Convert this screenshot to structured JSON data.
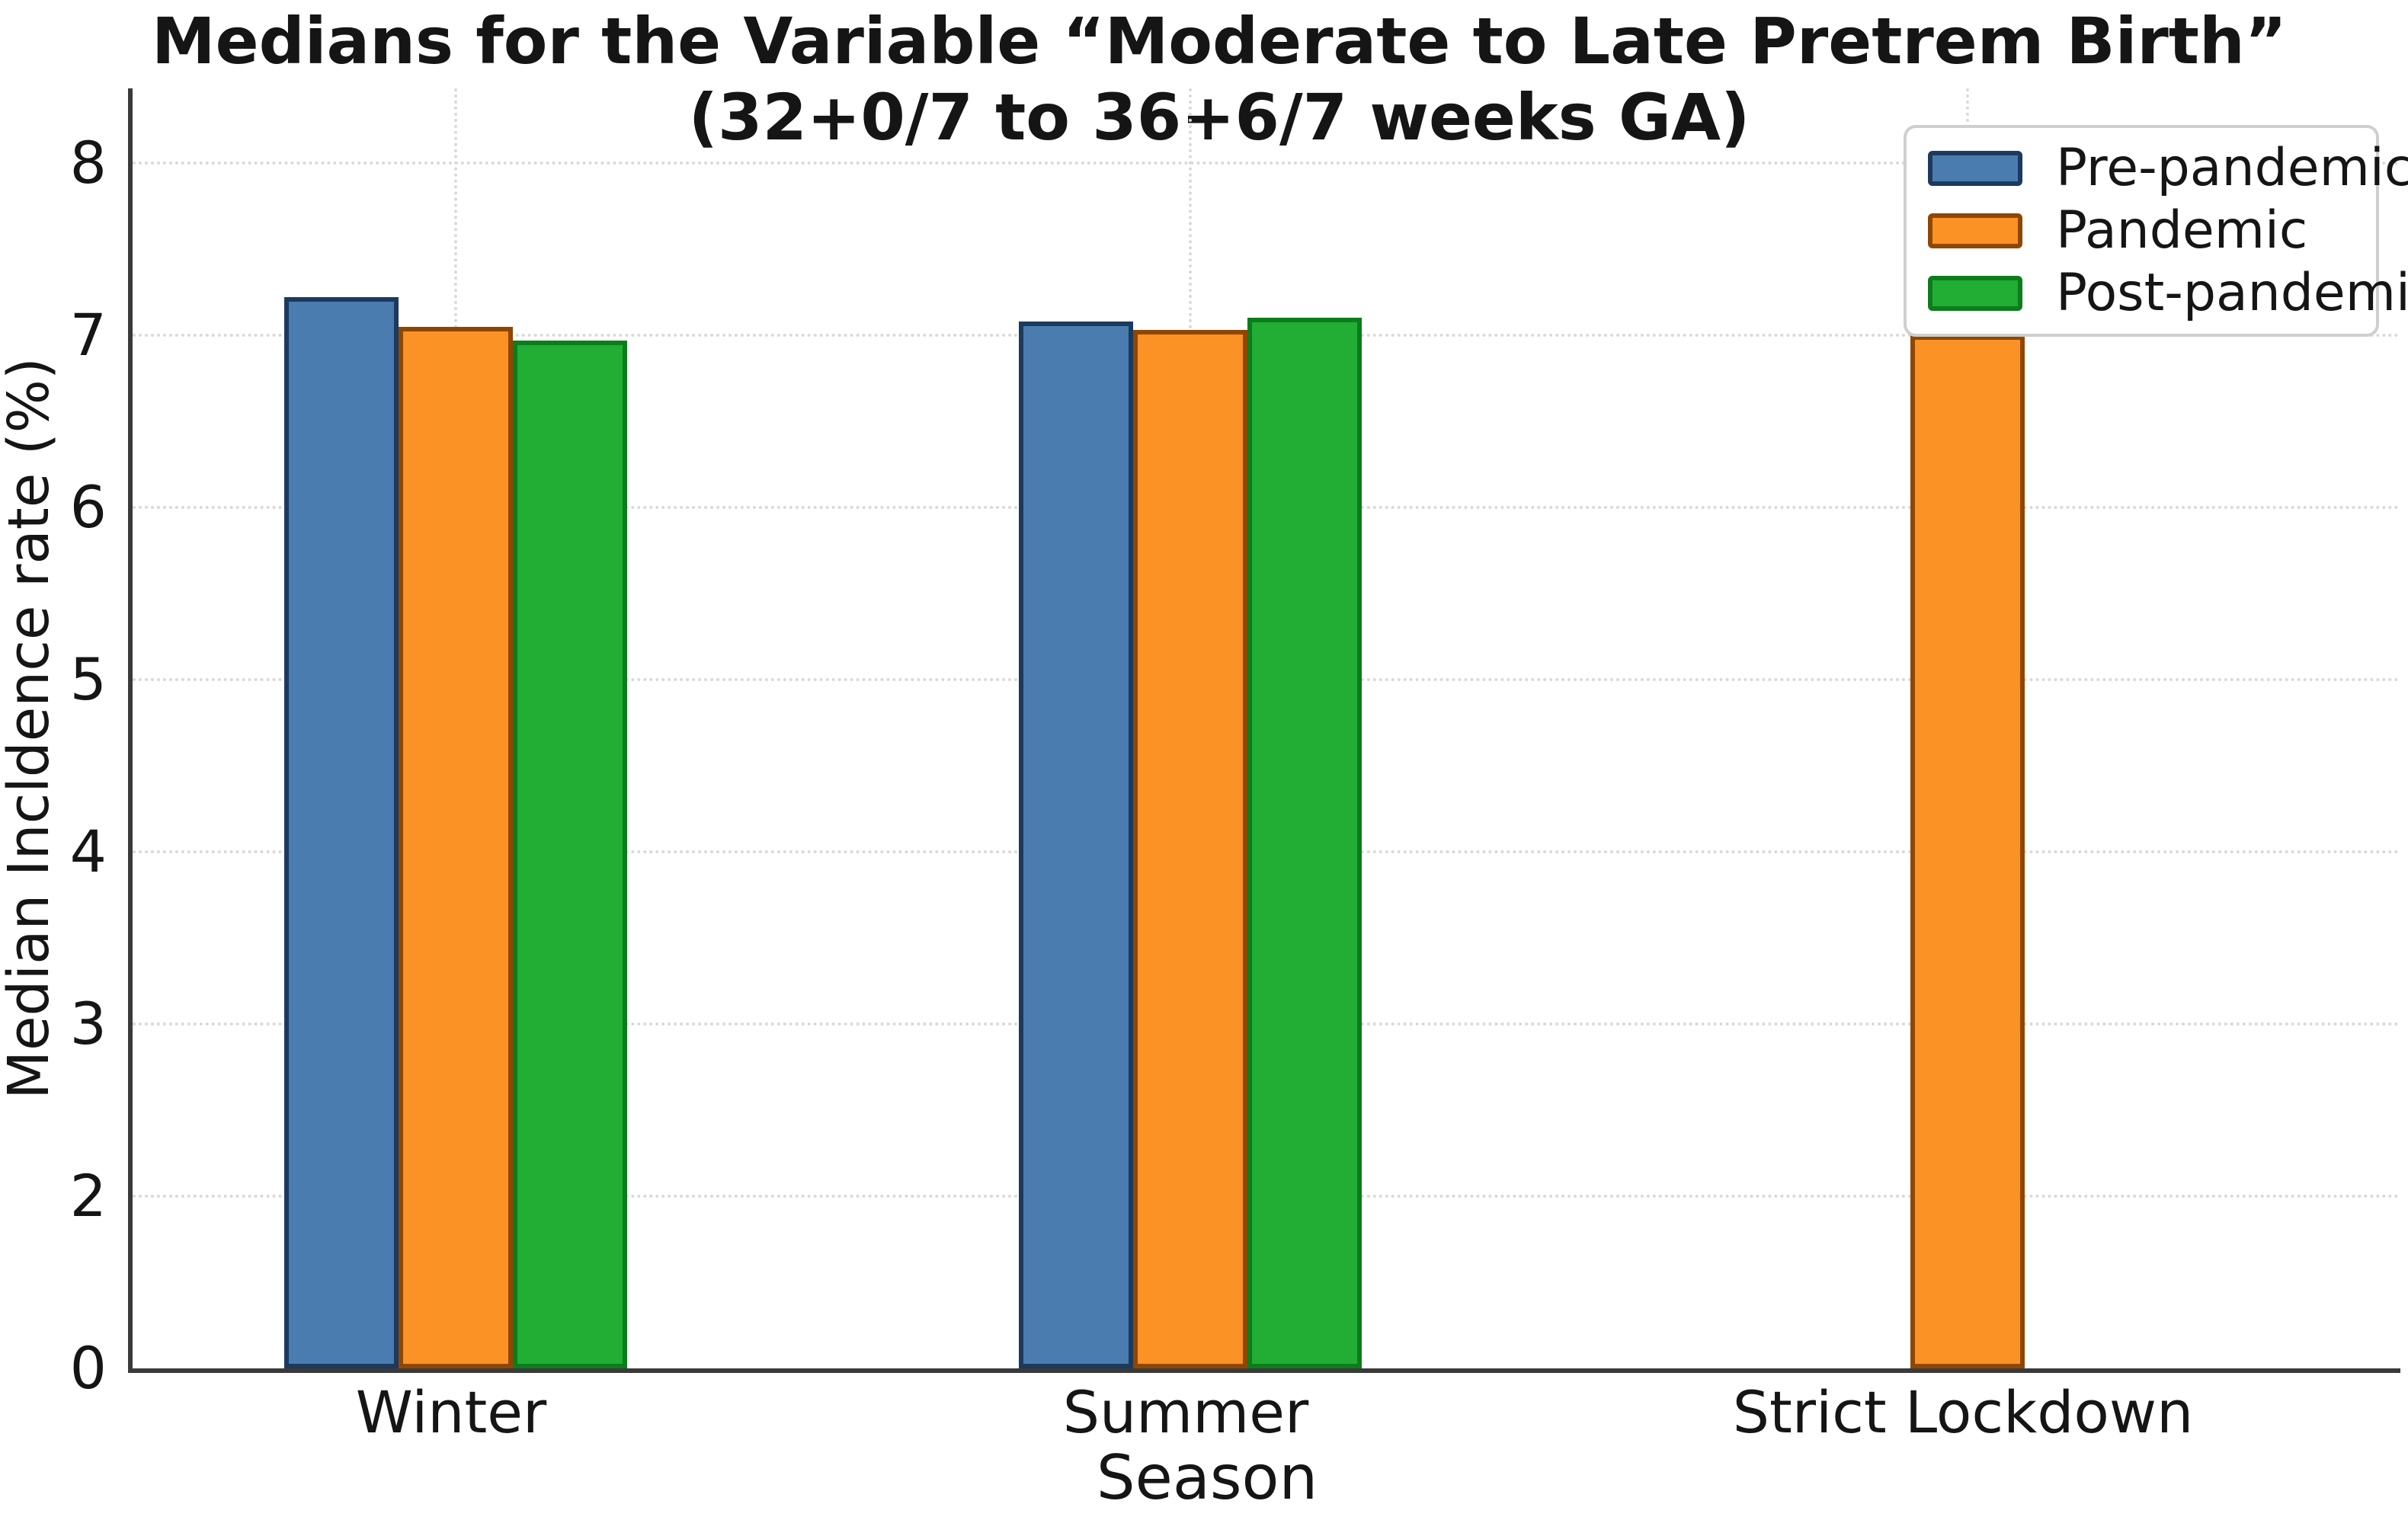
{
  "chart_data": {
    "type": "bar",
    "title_line1": "Medians for the Variable “Moderate to Late Pretrem Birth”",
    "title_line2": "(32+0/7 to 36+6/7 weeks GA)",
    "xlabel": "Season",
    "ylabel": "Median Incldence rate (%)",
    "categories": [
      "Winter",
      "Summer",
      "Strict Lockdown"
    ],
    "series": [
      {
        "name": "Pre-pandemic",
        "color": "#4a7cb0",
        "edge_color": "#1c3a5e",
        "values": [
          7.22,
          7.08,
          null
        ]
      },
      {
        "name": "Pandemic",
        "color": "#fa9226",
        "edge_color": "#8f4700",
        "values": [
          7.05,
          7.03,
          7.0
        ]
      },
      {
        "name": "Post-pandemic",
        "color": "#22ad35",
        "edge_color": "#0c7d1b",
        "values": [
          6.97,
          7.1,
          null
        ]
      }
    ],
    "ytick_labels_bottom_to_top": [
      "0",
      "2",
      "3",
      "4",
      "5",
      "6",
      "7",
      "8"
    ],
    "ylim_labels": [
      0,
      8
    ],
    "grid": {
      "style": "dotted",
      "horizontal_at_each_ytick": true,
      "vertical_at_each_category": true,
      "yticks_equally_spaced_as_shown": true
    },
    "legend": {
      "position": "upper right"
    }
  }
}
